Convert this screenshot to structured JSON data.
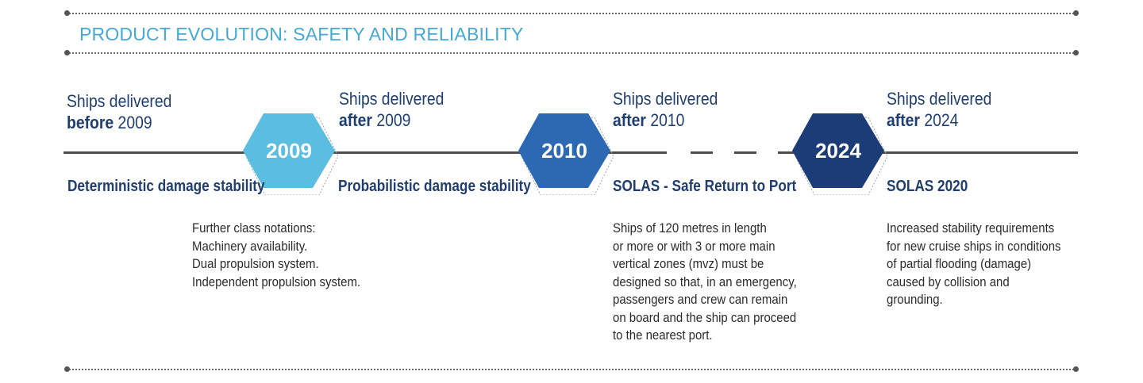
{
  "title": "PRODUCT EVOLUTION: SAFETY AND RELIABILITY",
  "colors": {
    "title": "#45a9d4",
    "navy": "#1f3e6f",
    "hex_2009": "#5bbde0",
    "hex_2010": "#2d68b3",
    "hex_2024": "#1b3c77"
  },
  "milestones": [
    {
      "year": "2009"
    },
    {
      "year": "2010"
    },
    {
      "year": "2024"
    }
  ],
  "stages": [
    {
      "heading_pre": "Ships delivered",
      "heading_bold": "before",
      "heading_year": " 2009",
      "label": "Deterministic damage stability"
    },
    {
      "heading_pre": "Ships delivered",
      "heading_bold": "after",
      "heading_year": " 2009",
      "label": "Probabilistic damage stability"
    },
    {
      "heading_pre": "Ships delivered",
      "heading_bold": "after",
      "heading_year": " 2010",
      "label": "SOLAS - Safe Return to Port"
    },
    {
      "heading_pre": "Ships delivered",
      "heading_bold": "after",
      "heading_year": " 2024",
      "label": "SOLAS 2020"
    }
  ],
  "notes": {
    "class_notations": [
      "Further class notations:",
      "Machinery availability.",
      "Dual propulsion system.",
      "Independent propulsion system."
    ],
    "safe_return": [
      "Ships of 120 metres in length",
      "or more or with 3 or more main",
      "vertical zones (mvz) must be",
      "designed so that, in an emergency,",
      "passengers and crew can remain",
      "on board and the ship can proceed",
      "to the nearest port."
    ],
    "solas_2020": [
      "Increased stability requirements",
      "for new cruise ships in conditions",
      "of partial flooding (damage)",
      "caused by collision and",
      "grounding."
    ]
  }
}
